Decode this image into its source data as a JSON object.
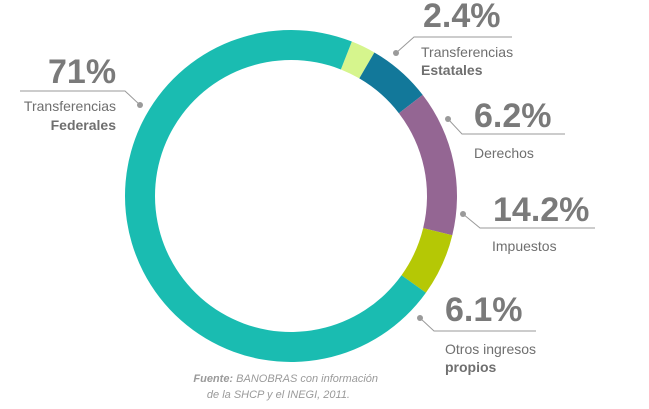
{
  "chart_data": {
    "type": "pie",
    "style": "donut",
    "categories": [
      {
        "line1": "Transferencias",
        "line2": "Estatales",
        "pct_label": "2.4%"
      },
      {
        "line1": "Derechos",
        "line2": "",
        "pct_label": "6.2%"
      },
      {
        "line1": "Impuestos",
        "line2": "",
        "pct_label": "14.2%"
      },
      {
        "line1": "Otros ingresos",
        "line2": "propios",
        "pct_label": "6.1%"
      },
      {
        "line1": "Transferencias",
        "line2": "Federales",
        "pct_label": "71%"
      }
    ],
    "values": [
      2.4,
      6.2,
      14.2,
      6.1,
      71
    ],
    "colors": [
      "#d6f58d",
      "#12789a",
      "#946693",
      "#b5c805",
      "#1abcb1"
    ]
  },
  "source": {
    "prefix": "Fuente:",
    "line1_rest": " BANOBRAS con información",
    "line2": "de la SHCP y el INEGI, 2011."
  }
}
